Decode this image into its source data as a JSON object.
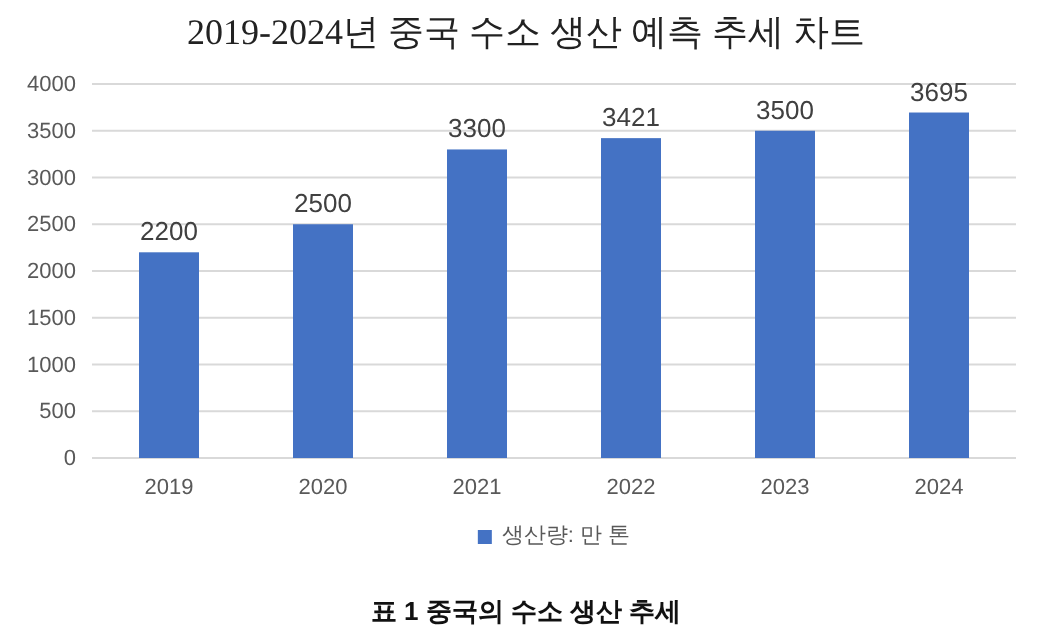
{
  "chart_data": {
    "type": "bar",
    "title": "2019-2024년 중국 수소 생산 예측 추세 차트",
    "categories": [
      "2019",
      "2020",
      "2021",
      "2022",
      "2023",
      "2024"
    ],
    "series": [
      {
        "name": "생산량: 만 톤",
        "color": "#4472c4",
        "values": [
          2200,
          2500,
          3300,
          3421,
          3500,
          3695
        ]
      }
    ],
    "ylim": [
      0,
      4000
    ],
    "yticks": [
      0,
      500,
      1000,
      1500,
      2000,
      2500,
      3000,
      3500,
      4000
    ],
    "grid": "y",
    "legend": "bottom",
    "data_labels": true,
    "annotations": [
      "표 1 중국의 수소 생산 추세"
    ]
  }
}
